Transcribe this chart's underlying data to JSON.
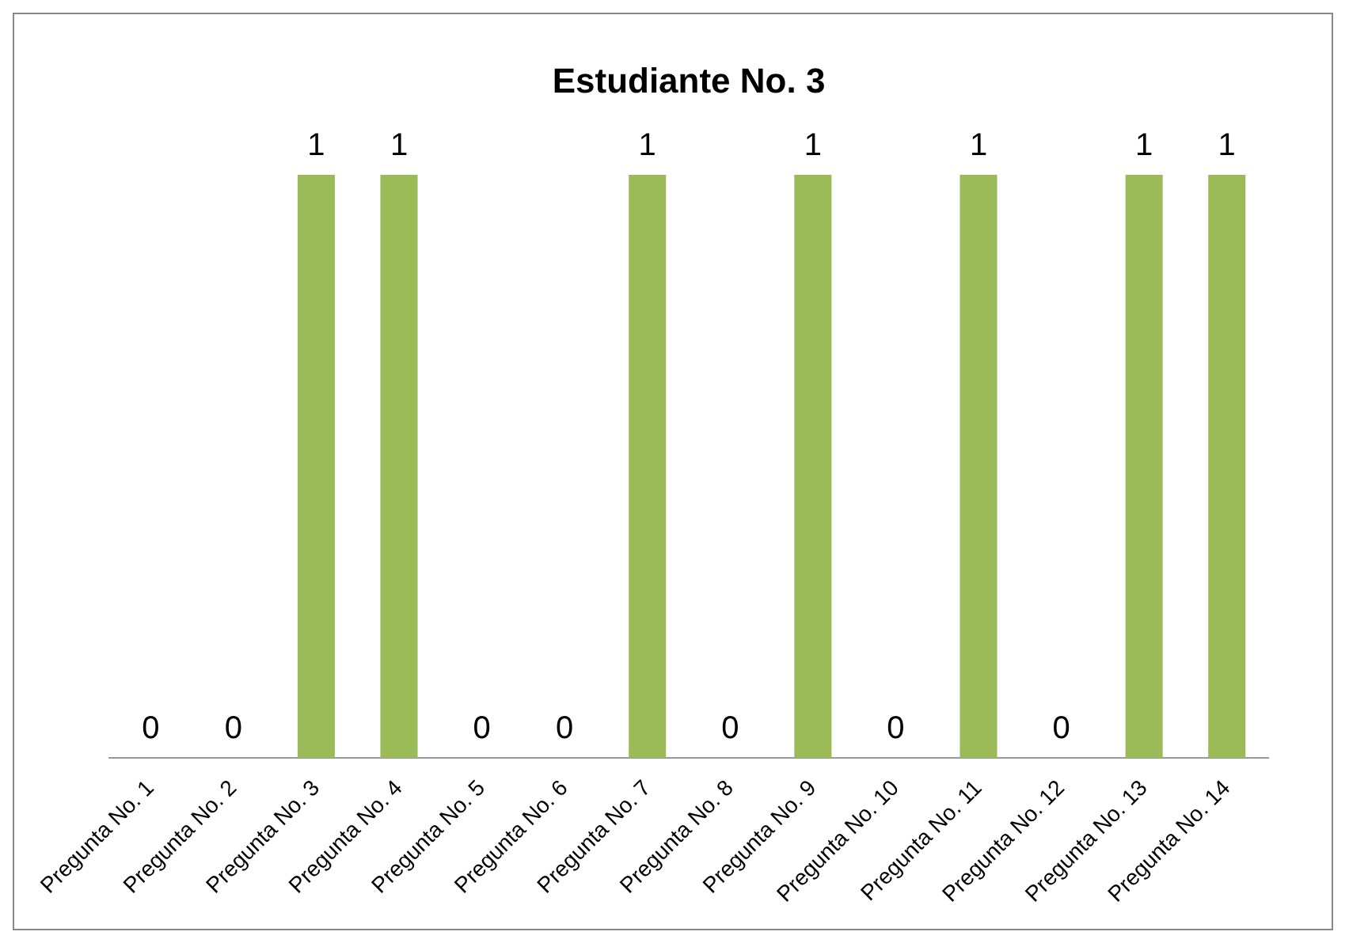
{
  "chart_data": {
    "type": "bar",
    "title": "Estudiante No. 3",
    "categories": [
      "Pregunta No. 1",
      "Pregunta No. 2",
      "Pregunta No. 3",
      "Pregunta No. 4",
      "Pregunta No. 5",
      "Pregunta No. 6",
      "Pregunta No. 7",
      "Pregunta No. 8",
      "Pregunta No. 9",
      "Pregunta No. 10",
      "Pregunta No. 11",
      "Pregunta No. 12",
      "Pregunta No. 13",
      "Pregunta No. 14"
    ],
    "values": [
      0,
      0,
      1,
      1,
      0,
      0,
      1,
      0,
      1,
      0,
      1,
      0,
      1,
      1
    ],
    "color": "#9bbb59",
    "data_labels": true,
    "grid": false,
    "legend": false
  }
}
